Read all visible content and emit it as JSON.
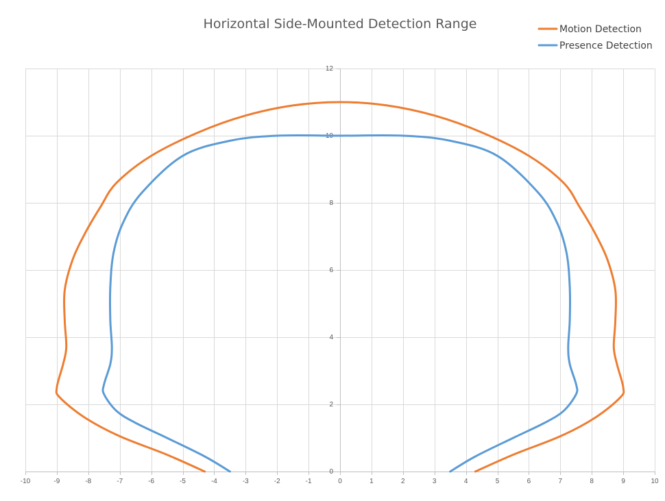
{
  "chart_data": {
    "type": "line",
    "title": "Horizontal Side-Mounted Detection Range",
    "xlabel": "",
    "ylabel": "",
    "xlim": [
      -10,
      10
    ],
    "ylim": [
      0,
      12
    ],
    "x_ticks": [
      "-10",
      "-9",
      "-8",
      "-7",
      "-6",
      "-5",
      "-4",
      "-3",
      "-2",
      "-1",
      "0",
      "1",
      "2",
      "3",
      "4",
      "5",
      "6",
      "7",
      "8",
      "9",
      "10"
    ],
    "y_ticks": [
      "0",
      "2",
      "4",
      "6",
      "8",
      "10",
      "12"
    ],
    "grid": true,
    "legend_position": "top-right",
    "series": [
      {
        "name": "Motion Detection",
        "color": "#ED7D31",
        "points": [
          [
            -4.3,
            0
          ],
          [
            -5.5,
            0.5
          ],
          [
            -7.0,
            1.05
          ],
          [
            -8.1,
            1.6
          ],
          [
            -8.9,
            2.2
          ],
          [
            -9.0,
            2.5
          ],
          [
            -8.8,
            3.2
          ],
          [
            -8.7,
            3.7
          ],
          [
            -8.75,
            4.5
          ],
          [
            -8.75,
            5.4
          ],
          [
            -8.5,
            6.3
          ],
          [
            -8.1,
            7.1
          ],
          [
            -7.6,
            7.9
          ],
          [
            -7.1,
            8.6
          ],
          [
            -6.0,
            9.4
          ],
          [
            -4.5,
            10.1
          ],
          [
            -3.0,
            10.6
          ],
          [
            -1.5,
            10.9
          ],
          [
            0.0,
            11.0
          ],
          [
            1.5,
            10.9
          ],
          [
            3.0,
            10.6
          ],
          [
            4.5,
            10.1
          ],
          [
            6.0,
            9.4
          ],
          [
            7.1,
            8.6
          ],
          [
            7.6,
            7.9
          ],
          [
            8.1,
            7.1
          ],
          [
            8.5,
            6.3
          ],
          [
            8.75,
            5.4
          ],
          [
            8.75,
            4.5
          ],
          [
            8.7,
            3.7
          ],
          [
            8.8,
            3.2
          ],
          [
            9.0,
            2.5
          ],
          [
            8.9,
            2.2
          ],
          [
            8.1,
            1.6
          ],
          [
            7.0,
            1.05
          ],
          [
            5.5,
            0.5
          ],
          [
            4.3,
            0
          ]
        ]
      },
      {
        "name": "Presence Detection",
        "color": "#5B9BD5",
        "points": [
          [
            -3.5,
            0
          ],
          [
            -4.3,
            0.45
          ],
          [
            -5.5,
            1.0
          ],
          [
            -6.5,
            1.45
          ],
          [
            -7.1,
            1.8
          ],
          [
            -7.5,
            2.3
          ],
          [
            -7.5,
            2.6
          ],
          [
            -7.3,
            3.2
          ],
          [
            -7.25,
            3.7
          ],
          [
            -7.3,
            4.5
          ],
          [
            -7.3,
            5.5
          ],
          [
            -7.2,
            6.5
          ],
          [
            -6.9,
            7.4
          ],
          [
            -6.3,
            8.3
          ],
          [
            -5.0,
            9.4
          ],
          [
            -3.5,
            9.85
          ],
          [
            -2.0,
            10.0
          ],
          [
            0.0,
            10.0
          ],
          [
            2.0,
            10.0
          ],
          [
            3.5,
            9.85
          ],
          [
            5.0,
            9.4
          ],
          [
            6.3,
            8.3
          ],
          [
            6.9,
            7.4
          ],
          [
            7.2,
            6.5
          ],
          [
            7.3,
            5.5
          ],
          [
            7.3,
            4.5
          ],
          [
            7.25,
            3.7
          ],
          [
            7.3,
            3.2
          ],
          [
            7.5,
            2.6
          ],
          [
            7.5,
            2.3
          ],
          [
            7.1,
            1.8
          ],
          [
            6.5,
            1.45
          ],
          [
            5.5,
            1.0
          ],
          [
            4.3,
            0.45
          ],
          [
            3.5,
            0
          ]
        ]
      }
    ]
  }
}
